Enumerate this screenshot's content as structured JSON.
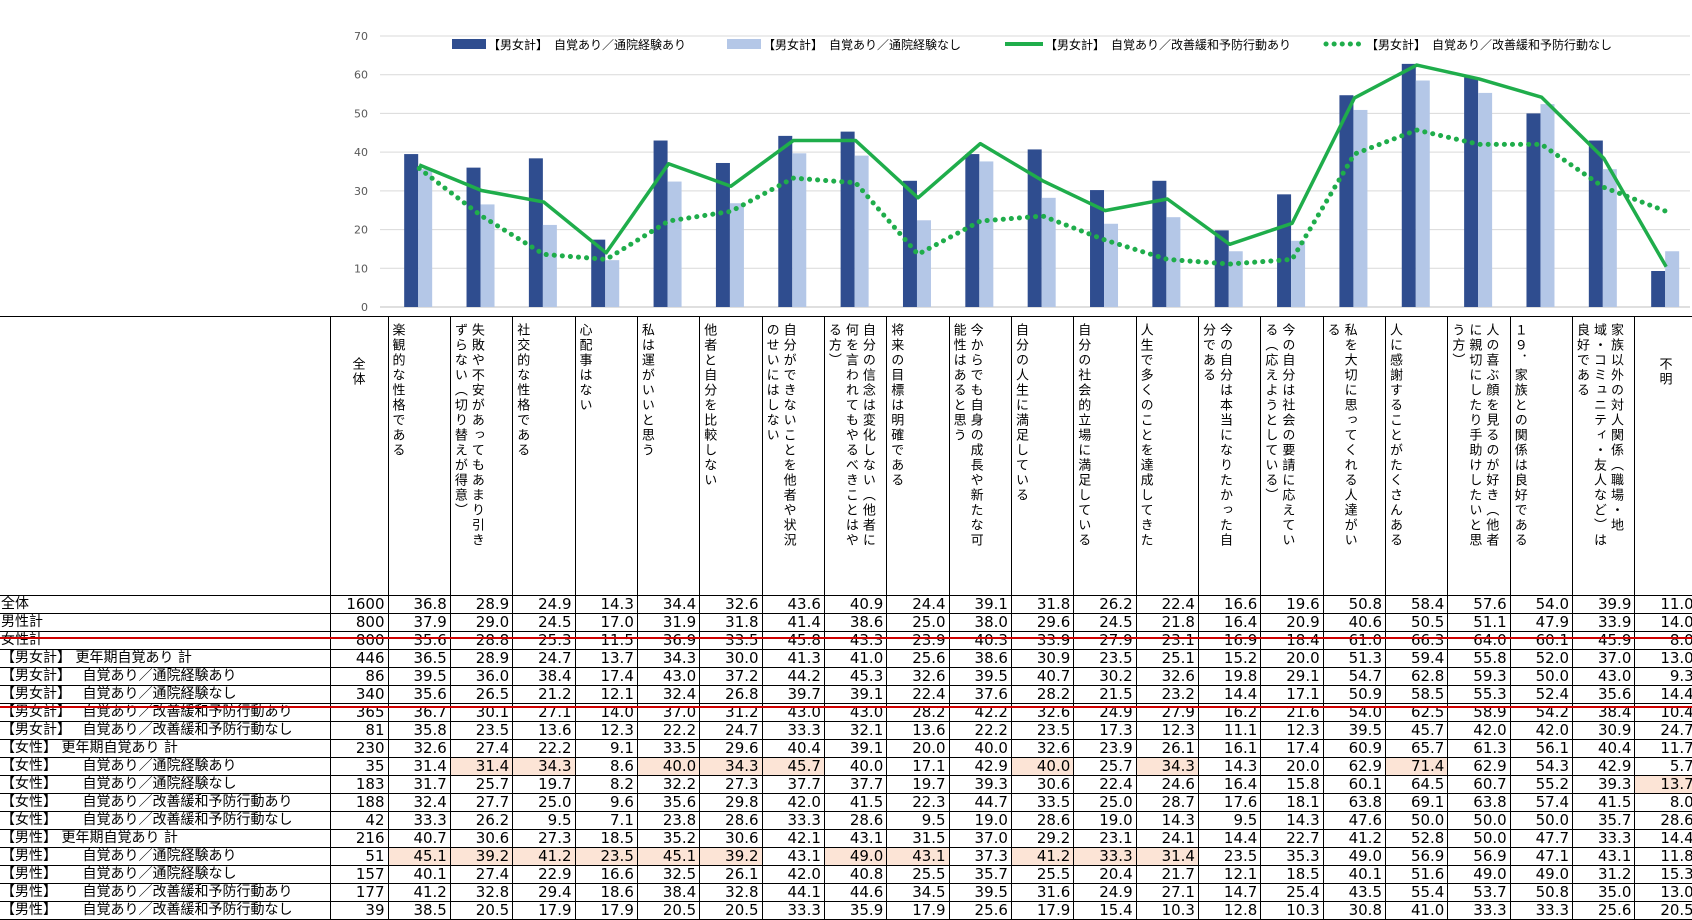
{
  "chart_data": {
    "type": "bar",
    "ylim": [
      0,
      70
    ],
    "yticks": [
      0,
      10,
      20,
      30,
      40,
      50,
      60,
      70
    ],
    "grid": true,
    "legend_position": "top",
    "categories": [
      "楽観的な性格である",
      "失敗や不安があってもあまり引きずらない（切り替えが得意）",
      "社交的な性格である",
      "心配事はない",
      "私は運がいいと思う",
      "他者と自分を比較しない",
      "自分ができないことを他者や状況のせいにはしない",
      "自分の信念は変化しない（他者に何を言われてもやるべきことはやる方）",
      "将来の目標は明確である",
      "今からでも自身の成長や新たな可能性はあると思う",
      "自分の人生に満足している",
      "自分の社会的立場に満足している",
      "人生で多くのことを達成してきた",
      "今の自分は本当になりたかった自分である",
      "今の自分は社会の要請に応えている（応えようとしている）",
      "私を大切に思ってくれる人達がいる",
      "人に感謝することがたくさんある",
      "人の喜ぶ顔を見るのが好き（他者に親切にしたり手助けしたいと思う方）",
      "19．家族との関係は良好である",
      "家族以外の対人関係（職場・地域・コミュニティ・友人など）は良好である",
      "不明"
    ],
    "series": [
      {
        "name": "【男女計】　自覚あり／通院経験あり",
        "type": "bar",
        "color": "#2f4d8f",
        "values": [
          39.5,
          36.0,
          38.4,
          17.4,
          43.0,
          37.2,
          44.2,
          45.3,
          32.6,
          39.5,
          40.7,
          30.2,
          32.6,
          19.8,
          29.1,
          54.7,
          62.8,
          59.3,
          50.0,
          43.0,
          9.3
        ]
      },
      {
        "name": "【男女計】　自覚あり／通院経験なし",
        "type": "bar",
        "color": "#b4c7e7",
        "values": [
          35.6,
          26.5,
          21.2,
          12.1,
          32.4,
          26.8,
          39.7,
          39.1,
          22.4,
          37.6,
          28.2,
          21.5,
          23.2,
          14.4,
          17.1,
          50.9,
          58.5,
          55.3,
          52.4,
          35.6,
          14.4
        ]
      },
      {
        "name": "【男女計】　自覚あり／改善緩和予防行動あり",
        "type": "line",
        "color": "#1fad4b",
        "values": [
          36.7,
          30.1,
          27.1,
          14.0,
          37.0,
          31.2,
          43.0,
          43.0,
          28.2,
          42.2,
          32.6,
          24.9,
          27.9,
          16.2,
          21.6,
          54.0,
          62.5,
          58.9,
          54.2,
          38.4,
          10.4
        ]
      },
      {
        "name": "【男女計】　自覚あり／改善緩和予防行動なし",
        "type": "dotted-line",
        "color": "#1fad4b",
        "values": [
          35.8,
          23.5,
          13.6,
          12.3,
          22.2,
          24.7,
          33.3,
          32.1,
          13.6,
          22.2,
          23.5,
          17.3,
          12.3,
          11.1,
          12.3,
          39.5,
          45.7,
          42.0,
          42.0,
          30.9,
          24.7
        ]
      }
    ]
  },
  "table": {
    "columns": [
      "全体",
      "楽観的な性格である",
      "失敗や不安があってもあまり引きずらない（切り替えが得意）",
      "社交的な性格である",
      "心配事はない",
      "私は運がいいと思う",
      "他者と自分を比較しない",
      "自分ができないことを他者や状況のせいにはしない",
      "自分の信念は変化しない（他者に何を言われてもやるべきことはやる方）",
      "将来の目標は明確である",
      "今からでも自身の成長や新たな可能性はあると思う",
      "自分の人生に満足している",
      "自分の社会的立場に満足している",
      "人生で多くのことを達成してきた",
      "今の自分は本当になりたかった自分である",
      "今の自分は社会の要請に応えている（応えようとしている）",
      "私を大切に思ってくれる人達がいる",
      "人に感謝することがたくさんある",
      "人の喜ぶ顔を見るのが好き（他者に親切にしたり手助けしたいと思う方）",
      "１９．家族との関係は良好である",
      "家族以外の対人関係（職場・地域・コミュニティ・友人など）は良好である",
      "不明"
    ],
    "rows": [
      {
        "label": "全体",
        "n": "1600",
        "values": [
          "36.8",
          "28.9",
          "24.9",
          "14.3",
          "34.4",
          "32.6",
          "43.6",
          "40.9",
          "24.4",
          "39.1",
          "31.8",
          "26.2",
          "22.4",
          "16.6",
          "19.6",
          "50.8",
          "58.4",
          "57.6",
          "54.0",
          "39.9",
          "11.0"
        ],
        "hl": []
      },
      {
        "label": "男性計",
        "n": "800",
        "values": [
          "37.9",
          "29.0",
          "24.5",
          "17.0",
          "31.9",
          "31.8",
          "41.4",
          "38.6",
          "25.0",
          "38.0",
          "29.6",
          "24.5",
          "21.8",
          "16.4",
          "20.9",
          "40.6",
          "50.5",
          "51.1",
          "47.9",
          "33.9",
          "14.0"
        ],
        "hl": []
      },
      {
        "label": "女性計",
        "n": "800",
        "values": [
          "35.6",
          "28.8",
          "25.3",
          "11.5",
          "36.9",
          "33.5",
          "45.8",
          "43.3",
          "23.9",
          "40.3",
          "33.9",
          "27.9",
          "23.1",
          "16.9",
          "18.4",
          "61.0",
          "66.3",
          "64.0",
          "60.1",
          "45.9",
          "8.0"
        ],
        "hl": []
      },
      {
        "label": "【男女計】 更年期自覚あり 計",
        "n": "446",
        "values": [
          "36.5",
          "28.9",
          "24.7",
          "13.7",
          "34.3",
          "30.0",
          "41.3",
          "41.0",
          "25.6",
          "38.6",
          "30.9",
          "23.5",
          "25.1",
          "15.2",
          "20.0",
          "51.3",
          "59.4",
          "55.8",
          "52.0",
          "37.0",
          "13.0"
        ],
        "hl": []
      },
      {
        "label": "【男女計】　 自覚あり／通院経験あり",
        "n": "86",
        "values": [
          "39.5",
          "36.0",
          "38.4",
          "17.4",
          "43.0",
          "37.2",
          "44.2",
          "45.3",
          "32.6",
          "39.5",
          "40.7",
          "30.2",
          "32.6",
          "19.8",
          "29.1",
          "54.7",
          "62.8",
          "59.3",
          "50.0",
          "43.0",
          "9.3"
        ],
        "hl": []
      },
      {
        "label": "【男女計】　 自覚あり／通院経験なし",
        "n": "340",
        "values": [
          "35.6",
          "26.5",
          "21.2",
          "12.1",
          "32.4",
          "26.8",
          "39.7",
          "39.1",
          "22.4",
          "37.6",
          "28.2",
          "21.5",
          "23.2",
          "14.4",
          "17.1",
          "50.9",
          "58.5",
          "55.3",
          "52.4",
          "35.6",
          "14.4"
        ],
        "hl": []
      },
      {
        "label": "【男女計】　 自覚あり／改善緩和予防行動あり",
        "n": "365",
        "values": [
          "36.7",
          "30.1",
          "27.1",
          "14.0",
          "37.0",
          "31.2",
          "43.0",
          "43.0",
          "28.2",
          "42.2",
          "32.6",
          "24.9",
          "27.9",
          "16.2",
          "21.6",
          "54.0",
          "62.5",
          "58.9",
          "54.2",
          "38.4",
          "10.4"
        ],
        "hl": []
      },
      {
        "label": "【男女計】　 自覚あり／改善緩和予防行動なし",
        "n": "81",
        "values": [
          "35.8",
          "23.5",
          "13.6",
          "12.3",
          "22.2",
          "24.7",
          "33.3",
          "32.1",
          "13.6",
          "22.2",
          "23.5",
          "17.3",
          "12.3",
          "11.1",
          "12.3",
          "39.5",
          "45.7",
          "42.0",
          "42.0",
          "30.9",
          "24.7"
        ],
        "hl": []
      },
      {
        "label": "【女性】 更年期自覚あり 計",
        "n": "230",
        "values": [
          "32.6",
          "27.4",
          "22.2",
          "9.1",
          "33.5",
          "29.6",
          "40.4",
          "39.1",
          "20.0",
          "40.0",
          "32.6",
          "23.9",
          "26.1",
          "16.1",
          "17.4",
          "60.9",
          "65.7",
          "61.3",
          "56.1",
          "40.4",
          "11.7"
        ],
        "hl": []
      },
      {
        "label": "【女性】　　 自覚あり／通院経験あり",
        "n": "35",
        "values": [
          "31.4",
          "31.4",
          "34.3",
          "8.6",
          "40.0",
          "34.3",
          "45.7",
          "40.0",
          "17.1",
          "42.9",
          "40.0",
          "25.7",
          "34.3",
          "14.3",
          "20.0",
          "62.9",
          "71.4",
          "62.9",
          "54.3",
          "42.9",
          "5.7"
        ],
        "hl": [
          1,
          2,
          4,
          5,
          6,
          10,
          12,
          16
        ]
      },
      {
        "label": "【女性】　　 自覚あり／通院経験なし",
        "n": "183",
        "values": [
          "31.7",
          "25.7",
          "19.7",
          "8.2",
          "32.2",
          "27.3",
          "37.7",
          "37.7",
          "19.7",
          "39.3",
          "30.6",
          "22.4",
          "24.6",
          "16.4",
          "15.8",
          "60.1",
          "64.5",
          "60.7",
          "55.2",
          "39.3",
          "13.7"
        ],
        "hl": [
          20
        ]
      },
      {
        "label": "【女性】　　 自覚あり／改善緩和予防行動あり",
        "n": "188",
        "values": [
          "32.4",
          "27.7",
          "25.0",
          "9.6",
          "35.6",
          "29.8",
          "42.0",
          "41.5",
          "22.3",
          "44.7",
          "33.5",
          "25.0",
          "28.7",
          "17.6",
          "18.1",
          "63.8",
          "69.1",
          "63.8",
          "57.4",
          "41.5",
          "8.0"
        ],
        "hl": []
      },
      {
        "label": "【女性】　　 自覚あり／改善緩和予防行動なし",
        "n": "42",
        "values": [
          "33.3",
          "26.2",
          "9.5",
          "7.1",
          "23.8",
          "28.6",
          "33.3",
          "28.6",
          "9.5",
          "19.0",
          "28.6",
          "19.0",
          "14.3",
          "9.5",
          "14.3",
          "47.6",
          "50.0",
          "50.0",
          "50.0",
          "35.7",
          "28.6"
        ],
        "hl": []
      },
      {
        "label": "【男性】 更年期自覚あり 計",
        "n": "216",
        "values": [
          "40.7",
          "30.6",
          "27.3",
          "18.5",
          "35.2",
          "30.6",
          "42.1",
          "43.1",
          "31.5",
          "37.0",
          "29.2",
          "23.1",
          "24.1",
          "14.4",
          "22.7",
          "41.2",
          "52.8",
          "50.0",
          "47.7",
          "33.3",
          "14.4"
        ],
        "hl": []
      },
      {
        "label": "【男性】　　 自覚あり／通院経験あり",
        "n": "51",
        "values": [
          "45.1",
          "39.2",
          "41.2",
          "23.5",
          "45.1",
          "39.2",
          "43.1",
          "49.0",
          "43.1",
          "37.3",
          "41.2",
          "33.3",
          "31.4",
          "23.5",
          "35.3",
          "49.0",
          "56.9",
          "56.9",
          "47.1",
          "43.1",
          "11.8"
        ],
        "hl": [
          0,
          1,
          2,
          3,
          4,
          5,
          7,
          8,
          10,
          11,
          12
        ]
      },
      {
        "label": "【男性】　　 自覚あり／通院経験なし",
        "n": "157",
        "values": [
          "40.1",
          "27.4",
          "22.9",
          "16.6",
          "32.5",
          "26.1",
          "42.0",
          "40.8",
          "25.5",
          "35.7",
          "25.5",
          "20.4",
          "21.7",
          "12.1",
          "18.5",
          "40.1",
          "51.6",
          "49.0",
          "49.0",
          "31.2",
          "15.3"
        ],
        "hl": []
      },
      {
        "label": "【男性】　　 自覚あり／改善緩和予防行動あり",
        "n": "177",
        "values": [
          "41.2",
          "32.8",
          "29.4",
          "18.6",
          "38.4",
          "32.8",
          "44.1",
          "44.6",
          "34.5",
          "39.5",
          "31.6",
          "24.9",
          "27.1",
          "14.7",
          "25.4",
          "43.5",
          "55.4",
          "53.7",
          "50.8",
          "35.0",
          "13.0"
        ],
        "hl": []
      },
      {
        "label": "【男性】　　 自覚あり／改善緩和予防行動なし",
        "n": "39",
        "values": [
          "38.5",
          "20.5",
          "17.9",
          "17.9",
          "20.5",
          "20.5",
          "33.3",
          "35.9",
          "17.9",
          "25.6",
          "17.9",
          "15.4",
          "10.3",
          "12.8",
          "10.3",
          "30.8",
          "41.0",
          "33.3",
          "33.3",
          "25.6",
          "20.5"
        ],
        "hl": []
      }
    ]
  }
}
